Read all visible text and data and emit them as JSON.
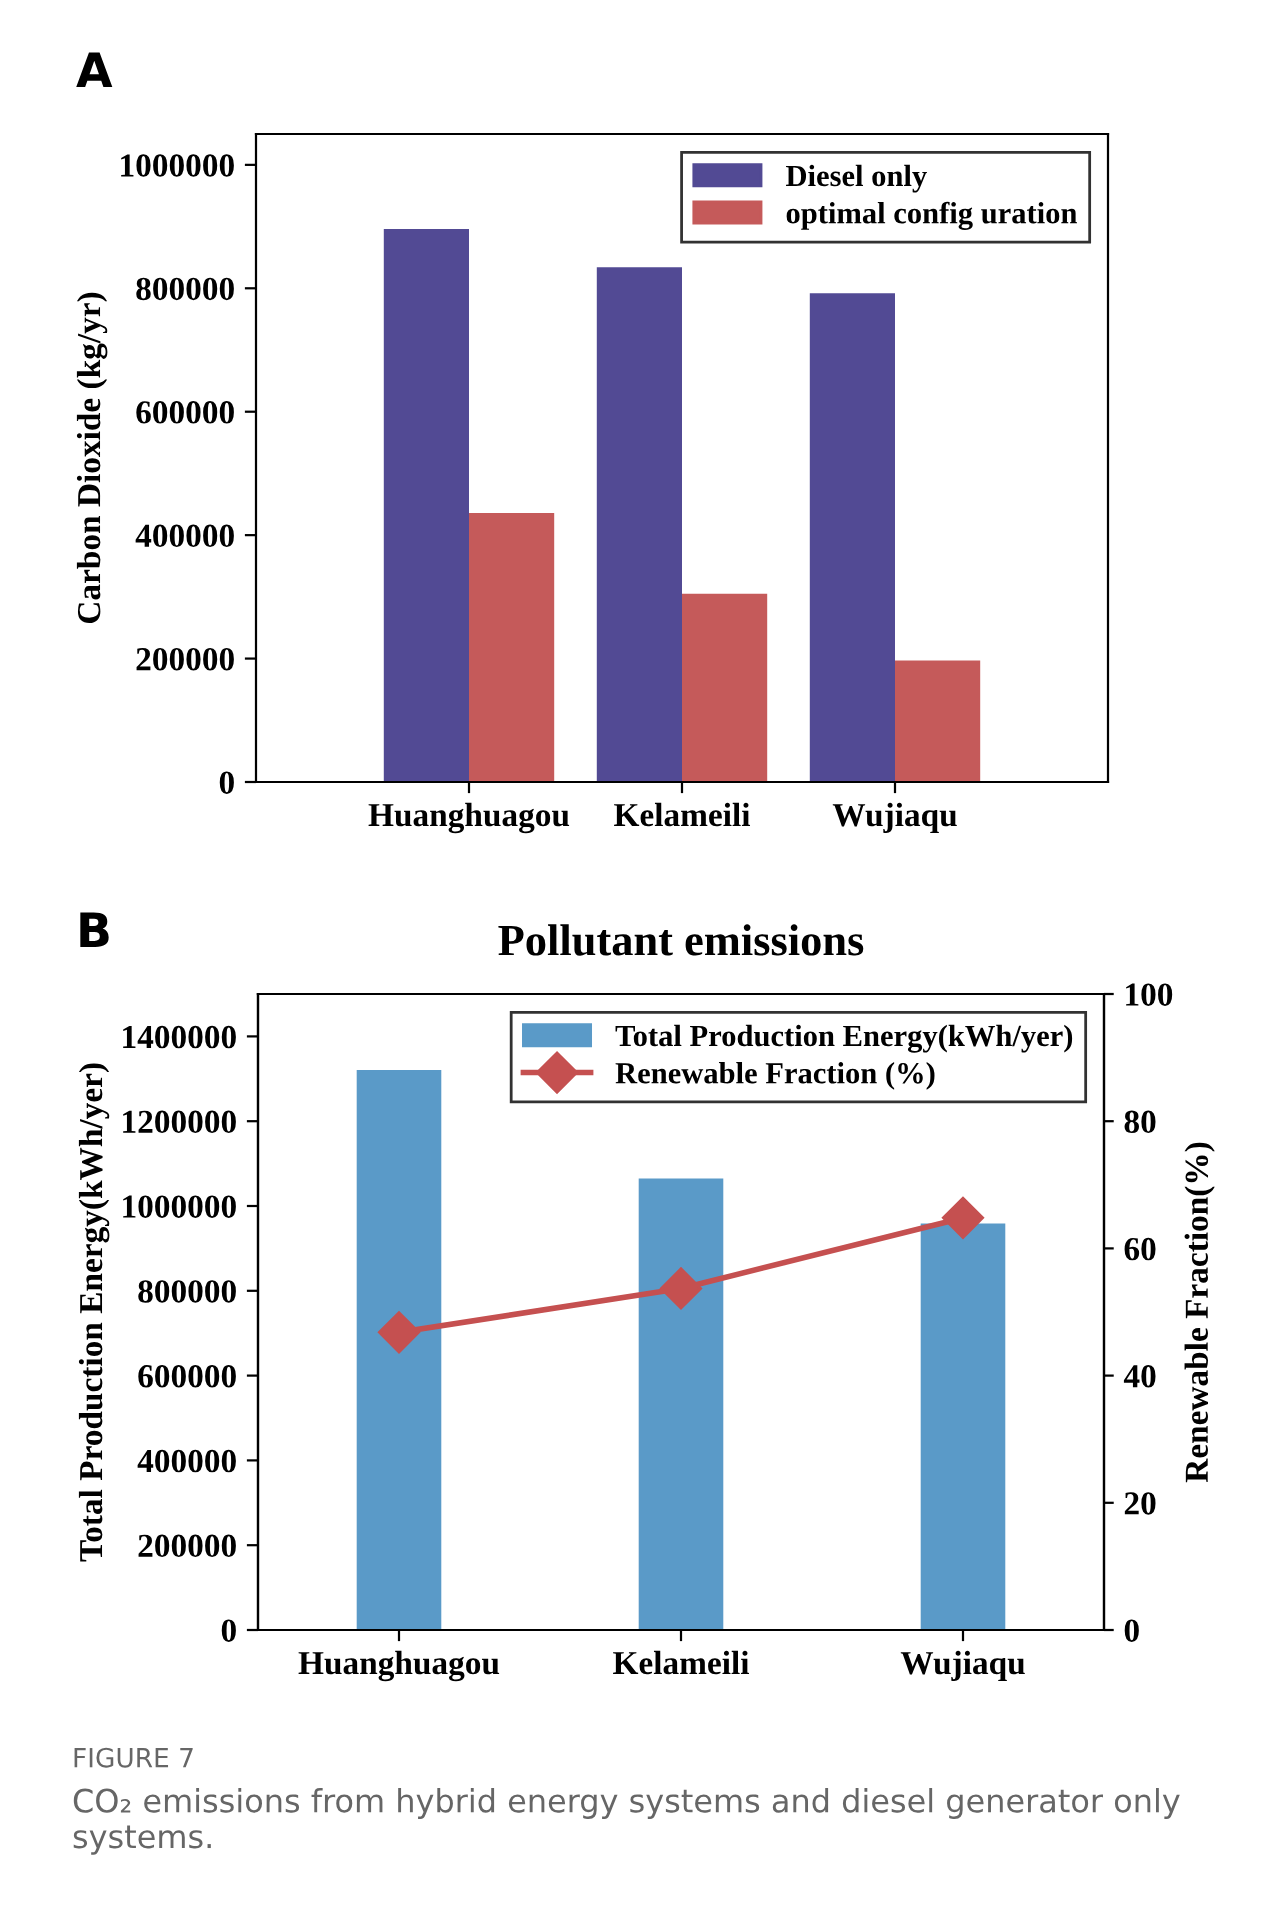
{
  "chart_data": [
    {
      "type": "bar",
      "annotations": [
        "A"
      ],
      "ylabel": "Carbon Dioxide (kg/yr)",
      "categories": [
        "Huanghuagou",
        "Kelameili",
        "Wujiaqu"
      ],
      "series": [
        {
          "name": "Diesel only",
          "color": "#524a94",
          "values": [
            896000,
            834000,
            792000
          ]
        },
        {
          "name": "optimal config uration",
          "color": "#c55a5a",
          "values": [
            436000,
            305000,
            197000
          ]
        }
      ],
      "ylim": [
        0,
        1050000
      ],
      "yticks": [
        0,
        200000,
        400000,
        600000,
        800000,
        1000000
      ],
      "legend": "top right"
    },
    {
      "type": "bar",
      "title": "Pollutant emissions",
      "annotations": [
        "B",
        "FIGURE 7",
        "CO₂ emissions from hybrid energy systems and diesel generator only systems."
      ],
      "ylabel": "Total Production Energy(kWh/yer)",
      "y2label": "Renewable Fraction(%)",
      "categories": [
        "Huanghuagou",
        "Kelameili",
        "Wujiaqu"
      ],
      "series": [
        {
          "name": "Total Production Energy(kWh/yer)",
          "color": "#5a9ac8",
          "values": [
            1321000,
            1065000,
            959000
          ]
        },
        {
          "name": "Renewable Fraction (%)",
          "type": "line",
          "axis": "y2",
          "color": "#c55050",
          "marker": "diamond",
          "values": [
            46.8,
            53.7,
            64.8
          ]
        }
      ],
      "ylim": [
        0,
        1500000
      ],
      "yticks": [
        0,
        200000,
        400000,
        600000,
        800000,
        1000000,
        1200000,
        1400000
      ],
      "y2lim": [
        0,
        100
      ],
      "y2ticks": [
        0,
        20,
        40,
        60,
        80,
        100
      ],
      "legend": "top right"
    }
  ]
}
